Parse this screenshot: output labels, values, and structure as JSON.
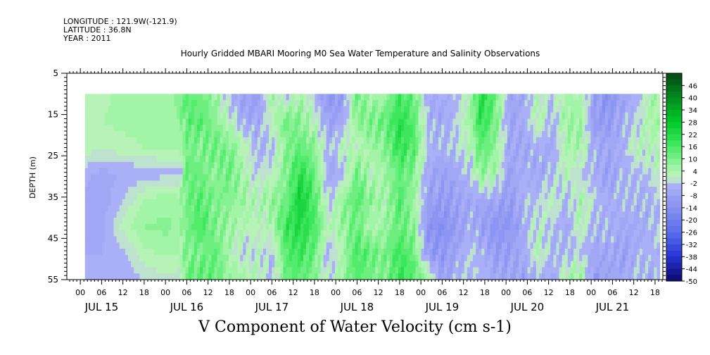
{
  "header": {
    "longitude": "LONGITUDE : 121.9W(-121.9)",
    "latitude": "LATITUDE : 36.8N",
    "year": "YEAR : 2011"
  },
  "chart_data": {
    "type": "heatmap",
    "title": "Hourly Gridded MBARI Mooring M0 Sea Water Temperature and Salinity Observations",
    "xlabel": "V Component of Water Velocity (cm s-1)",
    "ylabel": "DEPTH (m)",
    "ylim": [
      5,
      55
    ],
    "y_reversed": true,
    "y_ticks": [
      5,
      15,
      25,
      35,
      45,
      55
    ],
    "x_hour_ticks": [
      "00",
      "06",
      "12",
      "18",
      "00",
      "06",
      "12",
      "18",
      "00",
      "06",
      "12",
      "18",
      "00",
      "06",
      "12",
      "18",
      "00",
      "06",
      "12",
      "18",
      "00",
      "06",
      "12",
      "18",
      "00",
      "06",
      "12",
      "18"
    ],
    "x_day_labels": [
      "JUL 15",
      "JUL 16",
      "JUL 17",
      "JUL 18",
      "JUL 19",
      "JUL 20",
      "JUL 21"
    ],
    "x_range_hours": [
      -3.8,
      164.2
    ],
    "data_x_range_hours": [
      1.3,
      163.3
    ],
    "data_depth_range": [
      10,
      55
    ],
    "colorbar": {
      "levels": [
        "46",
        "40",
        "34",
        "28",
        "22",
        "16",
        "10",
        "4",
        "-2",
        "-8",
        "-14",
        "-20",
        "-26",
        "-32",
        "-38",
        "-44",
        "-50"
      ],
      "range": [
        -50,
        52
      ],
      "step": 3
    },
    "columns": [
      {
        "t": 1.3,
        "v": [
          2,
          3,
          3,
          -4,
          -6,
          -6,
          -5,
          -4
        ]
      },
      {
        "t": 6,
        "v": [
          3,
          4,
          2,
          -6,
          -7,
          -6,
          -5,
          -3
        ]
      },
      {
        "t": 12,
        "v": [
          5,
          5,
          3,
          -5,
          -2,
          2,
          -3,
          -5
        ]
      },
      {
        "t": 18,
        "v": [
          6,
          5,
          4,
          -4,
          4,
          7,
          3,
          -2
        ]
      },
      {
        "t": 24,
        "v": [
          6,
          6,
          5,
          -3,
          6,
          8,
          5,
          0
        ]
      },
      {
        "t": 28,
        "v": [
          8,
          7,
          5,
          -3,
          5,
          6,
          4,
          -1
        ]
      },
      {
        "t": 30,
        "v": [
          14,
          12,
          10,
          13,
          11,
          10,
          9,
          12
        ]
      },
      {
        "t": 34,
        "v": [
          10,
          15,
          9,
          11,
          14,
          16,
          10,
          14
        ]
      },
      {
        "t": 38,
        "v": [
          6,
          8,
          12,
          7,
          10,
          9,
          13,
          11
        ]
      },
      {
        "t": 42,
        "v": [
          -4,
          3,
          9,
          12,
          8,
          6,
          4,
          7
        ]
      },
      {
        "t": 46,
        "v": [
          -8,
          -6,
          3,
          4,
          6,
          3,
          -2,
          5
        ]
      },
      {
        "t": 50,
        "v": [
          -10,
          -6,
          -4,
          -2,
          3,
          2,
          1,
          4
        ]
      },
      {
        "t": 54,
        "v": [
          6,
          2,
          -3,
          1,
          8,
          4,
          -2,
          -4
        ]
      },
      {
        "t": 58,
        "v": [
          -4,
          11,
          8,
          9,
          10,
          18,
          14,
          12
        ]
      },
      {
        "t": 62,
        "v": [
          5,
          8,
          13,
          21,
          26,
          22,
          18,
          13
        ]
      },
      {
        "t": 66,
        "v": [
          -3,
          2,
          8,
          12,
          14,
          16,
          12,
          9
        ]
      },
      {
        "t": 70,
        "v": [
          -12,
          -8,
          -4,
          -6,
          -3,
          2,
          -4,
          -2
        ]
      },
      {
        "t": 74,
        "v": [
          -10,
          -6,
          3,
          -4,
          8,
          7,
          4,
          6
        ]
      },
      {
        "t": 78,
        "v": [
          13,
          8,
          2,
          11,
          14,
          12,
          16,
          14
        ]
      },
      {
        "t": 82,
        "v": [
          4,
          10,
          6,
          2,
          8,
          3,
          12,
          10
        ]
      },
      {
        "t": 86,
        "v": [
          5,
          12,
          9,
          6,
          4,
          6,
          10,
          8
        ]
      },
      {
        "t": 90,
        "v": [
          16,
          21,
          19,
          13,
          15,
          13,
          17,
          19
        ]
      },
      {
        "t": 94,
        "v": [
          12,
          14,
          15,
          9,
          6,
          8,
          12,
          14
        ]
      },
      {
        "t": 98,
        "v": [
          -6,
          -4,
          -3,
          -6,
          -8,
          -12,
          -10,
          6
        ]
      },
      {
        "t": 102,
        "v": [
          -5,
          -6,
          -4,
          -8,
          -10,
          -14,
          -12,
          -8
        ]
      },
      {
        "t": 106,
        "v": [
          -3,
          -2,
          -2,
          -6,
          -8,
          -10,
          -6,
          -4
        ]
      },
      {
        "t": 110,
        "v": [
          4,
          6,
          3,
          -2,
          -6,
          -4,
          -2,
          -3
        ]
      },
      {
        "t": 113,
        "v": [
          22,
          20,
          14,
          8,
          -6,
          -8,
          -4,
          -2
        ]
      },
      {
        "t": 117,
        "v": [
          12,
          10,
          7,
          4,
          -6,
          -12,
          -10,
          -6
        ]
      },
      {
        "t": 121,
        "v": [
          -6,
          -8,
          -6,
          -8,
          -10,
          -12,
          -8,
          -6
        ]
      },
      {
        "t": 125,
        "v": [
          -7,
          -5,
          -6,
          -4,
          -3,
          -6,
          -5,
          -8
        ]
      },
      {
        "t": 129,
        "v": [
          3,
          4,
          -4,
          -6,
          -3,
          2,
          3,
          -4
        ]
      },
      {
        "t": 133,
        "v": [
          -2,
          -4,
          -6,
          -3,
          2,
          -2,
          -4,
          -6
        ]
      },
      {
        "t": 137,
        "v": [
          5,
          6,
          4,
          3,
          -4,
          -6,
          -3,
          4
        ]
      },
      {
        "t": 141,
        "v": [
          4,
          6,
          5,
          -2,
          4,
          3,
          -2,
          7
        ]
      },
      {
        "t": 145,
        "v": [
          -8,
          -10,
          -6,
          -4,
          -2,
          -4,
          -6,
          -10
        ]
      },
      {
        "t": 149,
        "v": [
          -14,
          -10,
          -6,
          -8,
          -5,
          -4,
          -6,
          -8
        ]
      },
      {
        "t": 153,
        "v": [
          -8,
          -6,
          -4,
          -4,
          -3,
          -6,
          -8,
          -6
        ]
      },
      {
        "t": 157,
        "v": [
          -4,
          -2,
          3,
          -3,
          -4,
          -6,
          -4,
          -3
        ]
      },
      {
        "t": 160,
        "v": [
          3,
          4,
          2,
          -2,
          -5,
          -4,
          -3,
          -6
        ]
      },
      {
        "t": 163.3,
        "v": [
          5,
          6,
          3,
          2,
          -2,
          -3,
          -4,
          -3
        ]
      }
    ]
  }
}
